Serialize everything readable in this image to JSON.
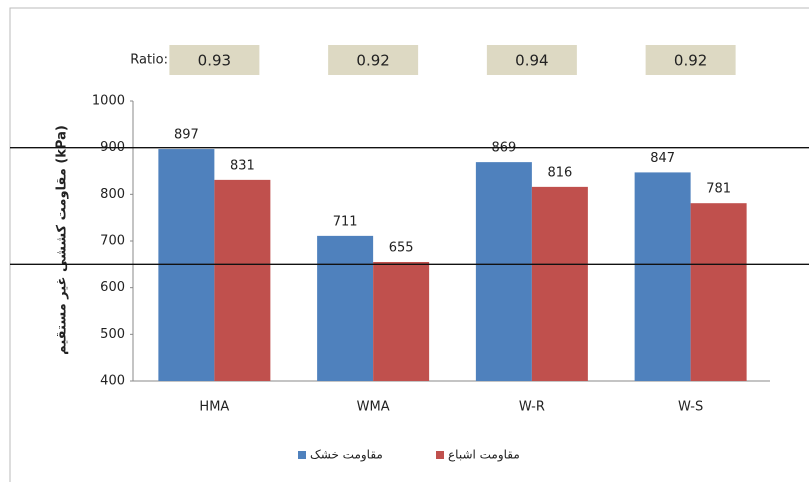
{
  "chart_data": {
    "type": "bar",
    "ratio_label": "Ratio:",
    "ratios": [
      "0.93",
      "0.92",
      "0.94",
      "0.92"
    ],
    "y_label": "مقاومت کششی غیر مستقیم (kPa)",
    "categories": [
      "HMA",
      "WMA",
      "W-R",
      "W-S"
    ],
    "series": [
      {
        "name": "مقاومت خشک",
        "color": "#4f81bd",
        "values": [
          897,
          711,
          869,
          847
        ]
      },
      {
        "name": "مقاومت اشباع",
        "color": "#c0504d",
        "values": [
          831,
          655,
          816,
          781
        ]
      }
    ],
    "reference_lines": [
      900,
      650
    ],
    "ylim": [
      400,
      1000
    ],
    "yticks": [
      400,
      500,
      600,
      700,
      800,
      900,
      1000
    ],
    "grid": false
  }
}
